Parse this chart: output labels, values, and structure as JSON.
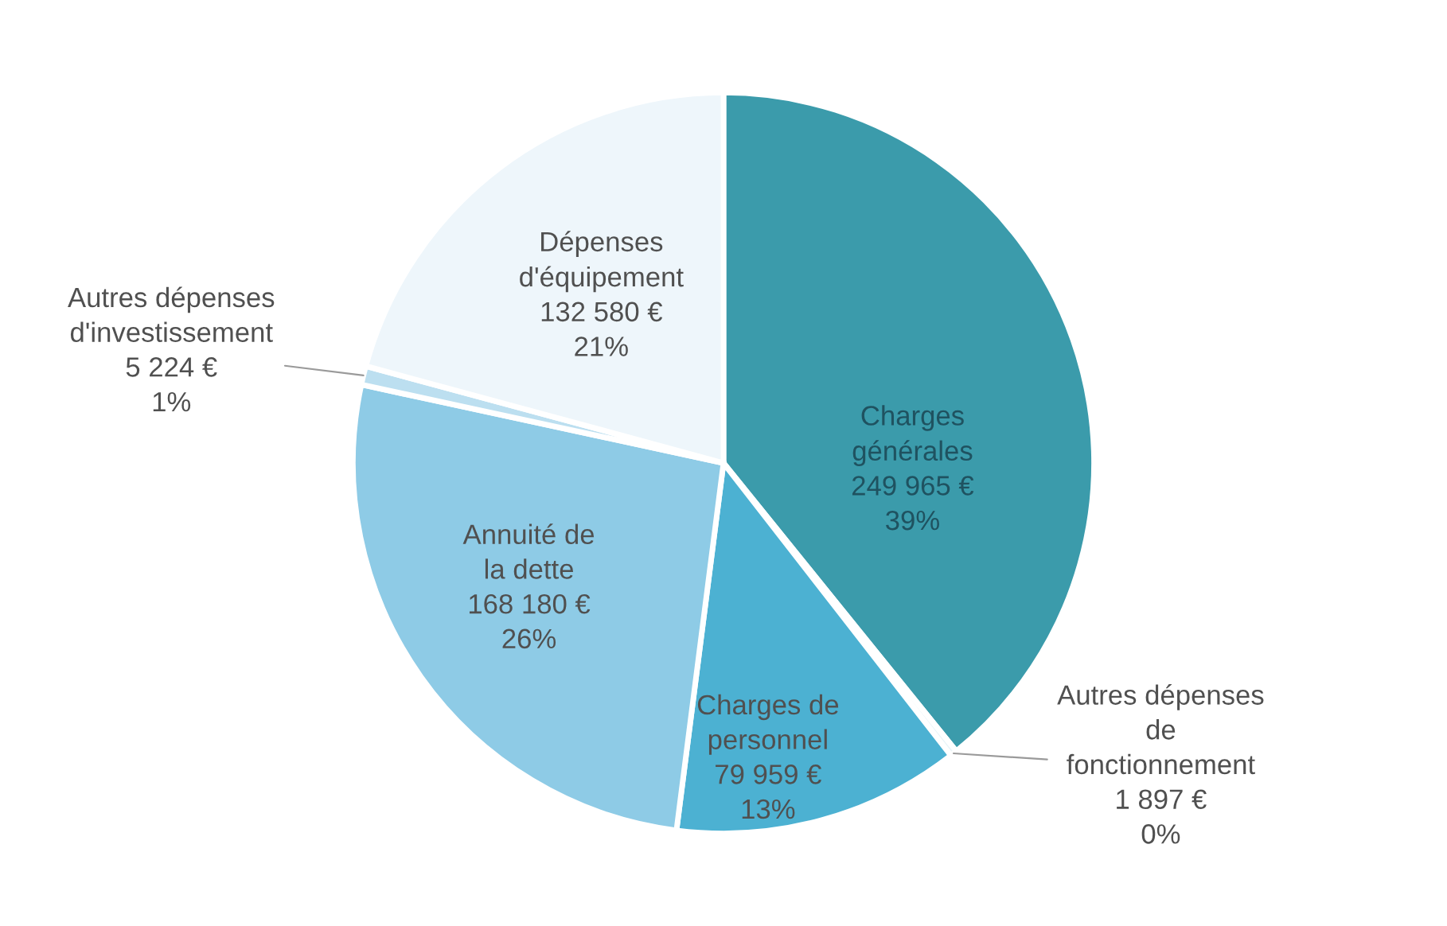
{
  "chart_data": {
    "type": "pie",
    "categories": [
      "Charges générales",
      "Autres dépenses de fonctionnement",
      "Charges de personnel",
      "Annuité de la dette",
      "Autres dépenses d'investissement",
      "Dépenses d'équipement"
    ],
    "values": [
      249965,
      1897,
      79959,
      168180,
      5224,
      132580
    ],
    "value_labels": [
      "249 965 €\n39%",
      "1 897 €\n0%",
      "79 959 €\n13%",
      "168 180 €\n26%",
      "5 224 €\n1%",
      "132 580 €\n21%"
    ],
    "colors": [
      "#3b9bab",
      "#e9f4f8",
      "#4cb1d2",
      "#8ecbe6",
      "#bcdff0",
      "#eef6fb"
    ],
    "legend": false
  }
}
